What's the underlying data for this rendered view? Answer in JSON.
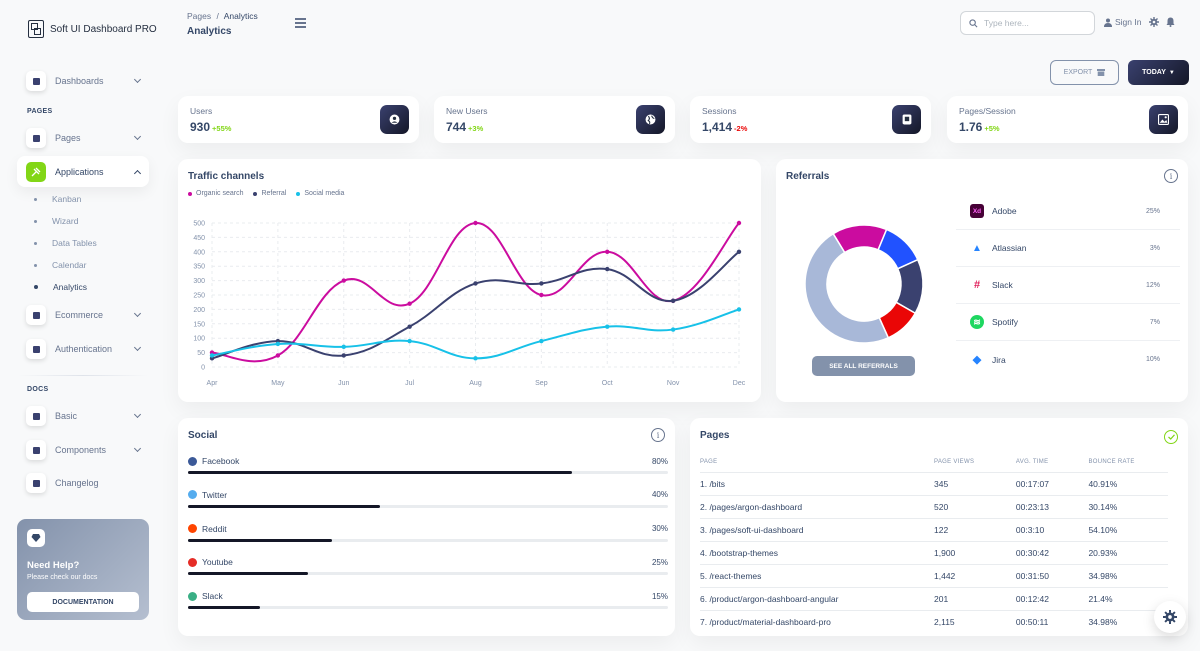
{
  "brand": {
    "name": "Soft UI Dashboard PRO"
  },
  "sidebar": {
    "dashboards": "Dashboards",
    "pages_section": "PAGES",
    "pages": "Pages",
    "applications": "Applications",
    "sub_items": [
      "Kanban",
      "Wizard",
      "Data Tables",
      "Calendar",
      "Analytics"
    ],
    "ecommerce": "Ecommerce",
    "authentication": "Authentication",
    "docs_section": "DOCS",
    "basic": "Basic",
    "components": "Components",
    "changelog": "Changelog",
    "help": {
      "title": "Need Help?",
      "subtitle": "Please check our docs",
      "button": "DOCUMENTATION"
    }
  },
  "header": {
    "breadcrumb_root": "Pages",
    "breadcrumb_sep": "/",
    "breadcrumb_current": "Analytics",
    "title": "Analytics",
    "search_placeholder": "Type here...",
    "sign_in": "Sign In"
  },
  "actions": {
    "export": "EXPORT",
    "today": "TODAY"
  },
  "stats": [
    {
      "label": "Users",
      "value": "930",
      "change": "+55%",
      "change_color": "#82d616",
      "icon": "user-icon"
    },
    {
      "label": "New Users",
      "value": "744",
      "change": "+3%",
      "change_color": "#82d616",
      "icon": "globe-icon"
    },
    {
      "label": "Sessions",
      "value": "1,414",
      "change": "-2%",
      "change_color": "#ea0606",
      "icon": "tablet-icon"
    },
    {
      "label": "Pages/Session",
      "value": "1.76",
      "change": "+5%",
      "change_color": "#82d616",
      "icon": "image-icon"
    }
  ],
  "traffic": {
    "title": "Traffic channels"
  },
  "chart_data": {
    "type": "line",
    "title": "Traffic channels",
    "categories": [
      "Apr",
      "May",
      "Jun",
      "Jul",
      "Aug",
      "Sep",
      "Oct",
      "Nov",
      "Dec"
    ],
    "ylim": [
      0,
      500
    ],
    "yticks": [
      0,
      50,
      100,
      150,
      200,
      250,
      300,
      350,
      400,
      450,
      500
    ],
    "grid": true,
    "legend_position": "top-left",
    "series": [
      {
        "name": "Organic search",
        "color": "#cb0c9f",
        "values": [
          50,
          40,
          300,
          220,
          500,
          250,
          400,
          230,
          500
        ]
      },
      {
        "name": "Referral",
        "color": "#3a416f",
        "values": [
          30,
          90,
          40,
          140,
          290,
          290,
          340,
          230,
          400
        ]
      },
      {
        "name": "Social media",
        "color": "#17c1e8",
        "values": [
          40,
          80,
          70,
          90,
          30,
          90,
          140,
          130,
          200
        ]
      }
    ]
  },
  "referrals": {
    "title": "Referrals",
    "button": "SEE ALL REFERRALS",
    "items": [
      {
        "name": "Adobe",
        "pct": "25%",
        "value": 25,
        "color": "#cb0c9f",
        "icon": "adobe-xd-icon",
        "glyph": "Xd"
      },
      {
        "name": "Atlassian",
        "pct": "3%",
        "value": 3,
        "color": "#17c1e8",
        "icon": "atlassian-icon",
        "glyph": "▲"
      },
      {
        "name": "Slack",
        "pct": "12%",
        "value": 12,
        "color": "#3a416f",
        "icon": "slack-icon",
        "glyph": "#"
      },
      {
        "name": "Spotify",
        "pct": "7%",
        "value": 7,
        "color": "#ea0606",
        "icon": "spotify-icon",
        "glyph": "≋"
      },
      {
        "name": "Jira",
        "pct": "10%",
        "value": 10,
        "color": "#a8b8d8",
        "icon": "jira-icon",
        "glyph": "◆"
      }
    ],
    "donut": [
      {
        "value": 15,
        "color": "#cb0c9f"
      },
      {
        "value": 12,
        "color": "#2152ff"
      },
      {
        "value": 15,
        "color": "#3a416f"
      },
      {
        "value": 10,
        "color": "#ea0606"
      },
      {
        "value": 48,
        "color": "#a8b8d8"
      }
    ]
  },
  "social": {
    "title": "Social",
    "items": [
      {
        "name": "Facebook",
        "pct": "80%",
        "value": 80,
        "icon": "facebook-icon",
        "color": "#3b5998"
      },
      {
        "name": "Twitter",
        "pct": "40%",
        "value": 40,
        "icon": "twitter-icon",
        "color": "#55acee"
      },
      {
        "name": "Reddit",
        "pct": "30%",
        "value": 30,
        "icon": "reddit-icon",
        "color": "#ff4500"
      },
      {
        "name": "Youtube",
        "pct": "25%",
        "value": 25,
        "icon": "youtube-icon",
        "color": "#e52d27"
      },
      {
        "name": "Slack",
        "pct": "15%",
        "value": 15,
        "icon": "slack-icon",
        "color": "#3aaf85"
      }
    ]
  },
  "pages_table": {
    "title": "Pages",
    "headers": [
      "PAGE",
      "PAGE VIEWS",
      "AVG. TIME",
      "BOUNCE RATE"
    ],
    "rows": [
      [
        "1. /bits",
        "345",
        "00:17:07",
        "40.91%"
      ],
      [
        "2. /pages/argon-dashboard",
        "520",
        "00:23:13",
        "30.14%"
      ],
      [
        "3. /pages/soft-ui-dashboard",
        "122",
        "00:3:10",
        "54.10%"
      ],
      [
        "4. /bootstrap-themes",
        "1,900",
        "00:30:42",
        "20.93%"
      ],
      [
        "5. /react-themes",
        "1,442",
        "00:31:50",
        "34.98%"
      ],
      [
        "6. /product/argon-dashboard-angular",
        "201",
        "00:12:42",
        "21.4%"
      ],
      [
        "7. /product/material-dashboard-pro",
        "2,115",
        "00:50:11",
        "34.98%"
      ]
    ]
  }
}
